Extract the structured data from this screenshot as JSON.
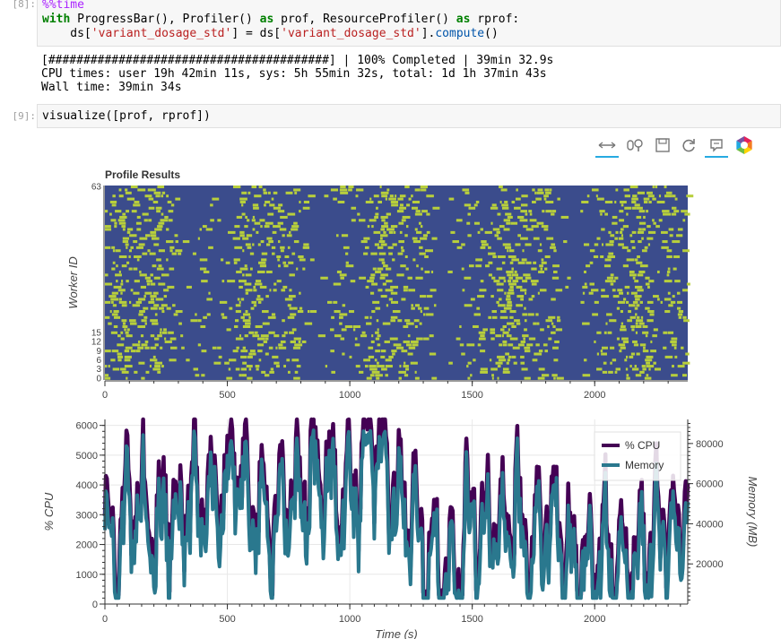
{
  "cell8": {
    "prompt": "[8]:",
    "line1_magic": "%%time",
    "line2_parts": [
      "with",
      " ProgressBar(), Profiler() ",
      "as",
      " prof, ResourceProfiler() ",
      "as",
      " rprof:"
    ],
    "line3_parts": [
      "    ds[",
      "'variant_dosage_std'",
      "] = ds[",
      "'variant_dosage_std'",
      "].",
      "compute",
      "()"
    ],
    "output": [
      "[########################################] | 100% Completed | 39min 32.9s",
      "CPU times: user 19h 42min 11s, sys: 5h 55min 32s, total: 1d 1h 37min 43s",
      "Wall time: 39min 34s"
    ]
  },
  "cell9": {
    "prompt": "[9]:",
    "code": "visualize([prof, rprof])"
  },
  "toolbar": {
    "tools": [
      "pan-icon",
      "wheel-zoom-icon",
      "save-icon",
      "reset-icon",
      "hover-icon",
      "bokeh-logo-icon"
    ]
  },
  "colors": {
    "worker_bg": "#3b4c8c",
    "task": "#b8cf3c",
    "cpu": "#440154",
    "memory": "#2a788e"
  },
  "chart_data": [
    {
      "type": "heatmap",
      "title": "Profile Results",
      "ylabel": "Worker ID",
      "xlim": [
        0,
        2380
      ],
      "x_ticks": [
        "0",
        "500",
        "1000",
        "1500",
        "2000"
      ],
      "y_ticks_visible": [
        "0",
        "3",
        "6",
        "9",
        "12",
        "15",
        "63"
      ],
      "workers": 64
    },
    {
      "type": "line",
      "xlabel": "Time (s)",
      "ylabel": "% CPU",
      "ylabel_right": "Memory (MB)",
      "xlim": [
        0,
        2380
      ],
      "ylim": [
        0,
        6200
      ],
      "ylim_right": [
        0,
        92000
      ],
      "x_ticks": [
        "0",
        "500",
        "1000",
        "1500",
        "2000"
      ],
      "y_ticks": [
        "0",
        "1000",
        "2000",
        "3000",
        "4000",
        "5000",
        "6000"
      ],
      "y_ticks_right": [
        "20000",
        "40000",
        "60000",
        "80000"
      ],
      "legend": {
        "placement": "top-right",
        "entries": [
          "% CPU",
          "Memory"
        ]
      },
      "series": [
        {
          "name": "% CPU",
          "approx_range": [
            300,
            6200
          ]
        },
        {
          "name": "Memory",
          "approx_range": [
            3000,
            90000
          ]
        }
      ]
    }
  ]
}
